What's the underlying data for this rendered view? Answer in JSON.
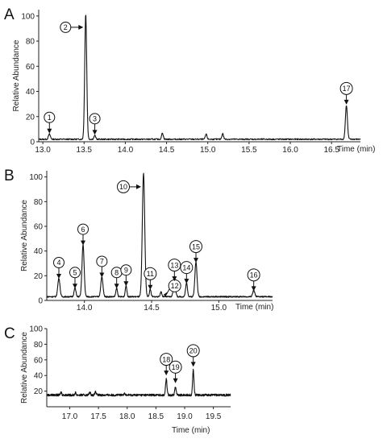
{
  "chart_data": [
    {
      "type": "line",
      "panel": "A",
      "ylabel": "Relative Abundance",
      "xlabel": "Time (min)",
      "xlim": [
        12.95,
        16.85
      ],
      "ylim": [
        0,
        105
      ],
      "xticks": [
        13.0,
        13.5,
        14.0,
        14.5,
        15.0,
        15.5,
        16.0,
        16.5
      ],
      "xtick_labels": [
        "13.0",
        "13.5",
        "14.0",
        "14.5",
        "15.0",
        "15.5",
        "16.0",
        "16.5"
      ],
      "yticks": [
        0,
        20,
        40,
        60,
        80,
        100
      ],
      "ytick_labels": [
        "0",
        "20",
        "40",
        "60",
        "80",
        "100"
      ],
      "baseline": 2,
      "peaks": [
        {
          "x": 13.08,
          "y": 4,
          "w": 0.012
        },
        {
          "x": 13.52,
          "y": 100,
          "w": 0.012
        },
        {
          "x": 13.63,
          "y": 3,
          "w": 0.01
        },
        {
          "x": 14.45,
          "y": 5,
          "w": 0.01
        },
        {
          "x": 14.98,
          "y": 4,
          "w": 0.01
        },
        {
          "x": 15.18,
          "y": 4.5,
          "w": 0.01
        },
        {
          "x": 16.68,
          "y": 27,
          "w": 0.012
        }
      ],
      "annotations": [
        {
          "label": "1",
          "x": 13.08,
          "y": 4,
          "dir": "up"
        },
        {
          "label": "2",
          "x": 13.52,
          "y": 91,
          "dir": "right"
        },
        {
          "label": "3",
          "x": 13.63,
          "y": 3,
          "dir": "up"
        },
        {
          "label": "17",
          "x": 16.68,
          "y": 27,
          "dir": "up"
        }
      ]
    },
    {
      "type": "line",
      "panel": "B",
      "ylabel": "Relative Abundance",
      "xlabel": "Time (min)",
      "xlim": [
        13.72,
        15.4
      ],
      "ylim": [
        0,
        105
      ],
      "xticks": [
        14.0,
        14.5,
        15.0
      ],
      "xtick_labels": [
        "14.0",
        "14.5",
        "15.0"
      ],
      "yticks": [
        0,
        20,
        40,
        60,
        80,
        100
      ],
      "ytick_labels": [
        "0",
        "20",
        "40",
        "60",
        "80",
        "100"
      ],
      "baseline": 3,
      "peaks": [
        {
          "x": 13.81,
          "y": 15,
          "w": 0.008
        },
        {
          "x": 13.93,
          "y": 7,
          "w": 0.007
        },
        {
          "x": 13.99,
          "y": 42,
          "w": 0.008
        },
        {
          "x": 14.13,
          "y": 16,
          "w": 0.008
        },
        {
          "x": 14.24,
          "y": 7,
          "w": 0.006
        },
        {
          "x": 14.31,
          "y": 9,
          "w": 0.006
        },
        {
          "x": 14.44,
          "y": 100,
          "w": 0.009
        },
        {
          "x": 14.49,
          "y": 6,
          "w": 0.006
        },
        {
          "x": 14.57,
          "y": 4,
          "w": 0.006
        },
        {
          "x": 14.67,
          "y": 13,
          "w": 0.008
        },
        {
          "x": 14.76,
          "y": 11,
          "w": 0.007
        },
        {
          "x": 14.83,
          "y": 28,
          "w": 0.008
        },
        {
          "x": 15.26,
          "y": 5,
          "w": 0.008
        }
      ],
      "annotations": [
        {
          "label": "4",
          "x": 13.81,
          "y": 15,
          "dir": "up"
        },
        {
          "label": "5",
          "x": 13.93,
          "y": 7,
          "dir": "up"
        },
        {
          "label": "6",
          "x": 13.99,
          "y": 42,
          "dir": "up"
        },
        {
          "label": "7",
          "x": 14.13,
          "y": 16,
          "dir": "up"
        },
        {
          "label": "8",
          "x": 14.24,
          "y": 7,
          "dir": "up"
        },
        {
          "label": "9",
          "x": 14.31,
          "y": 9,
          "dir": "up"
        },
        {
          "label": "10",
          "x": 14.44,
          "y": 92,
          "dir": "right"
        },
        {
          "label": "11",
          "x": 14.49,
          "y": 6,
          "dir": "up"
        },
        {
          "label": "12",
          "x": 14.57,
          "y": 4,
          "dir": "left"
        },
        {
          "label": "13",
          "x": 14.67,
          "y": 13,
          "dir": "up"
        },
        {
          "label": "14",
          "x": 14.76,
          "y": 11,
          "dir": "up"
        },
        {
          "label": "15",
          "x": 14.83,
          "y": 28,
          "dir": "up"
        },
        {
          "label": "16",
          "x": 15.26,
          "y": 5,
          "dir": "up"
        }
      ]
    },
    {
      "type": "line",
      "panel": "C",
      "ylabel": "Relative Abundance",
      "xlabel": "Time (min)",
      "xlim": [
        16.6,
        19.8
      ],
      "ylim": [
        0,
        100
      ],
      "xticks": [
        17.0,
        17.5,
        18.0,
        18.5,
        19.0,
        19.5
      ],
      "xtick_labels": [
        "17.0",
        "17.5",
        "18.0",
        "18.5",
        "19.0",
        "19.5"
      ],
      "yticks": [
        20,
        40,
        60,
        80,
        100
      ],
      "ytick_labels": [
        "20",
        "40",
        "60",
        "80",
        "100"
      ],
      "baseline": 15,
      "peaks": [
        {
          "x": 16.85,
          "y": 4,
          "w": 0.01
        },
        {
          "x": 17.1,
          "y": 3,
          "w": 0.01
        },
        {
          "x": 17.35,
          "y": 3.5,
          "w": 0.012
        },
        {
          "x": 17.45,
          "y": 4,
          "w": 0.012
        },
        {
          "x": 17.95,
          "y": 3,
          "w": 0.01
        },
        {
          "x": 18.68,
          "y": 21,
          "w": 0.012
        },
        {
          "x": 18.84,
          "y": 11,
          "w": 0.012
        },
        {
          "x": 19.15,
          "y": 32,
          "w": 0.012
        }
      ],
      "annotations": [
        {
          "label": "18",
          "x": 18.68,
          "y": 36,
          "dir": "up"
        },
        {
          "label": "19",
          "x": 18.84,
          "y": 26,
          "dir": "up"
        },
        {
          "label": "20",
          "x": 19.15,
          "y": 47,
          "dir": "up"
        }
      ]
    }
  ]
}
